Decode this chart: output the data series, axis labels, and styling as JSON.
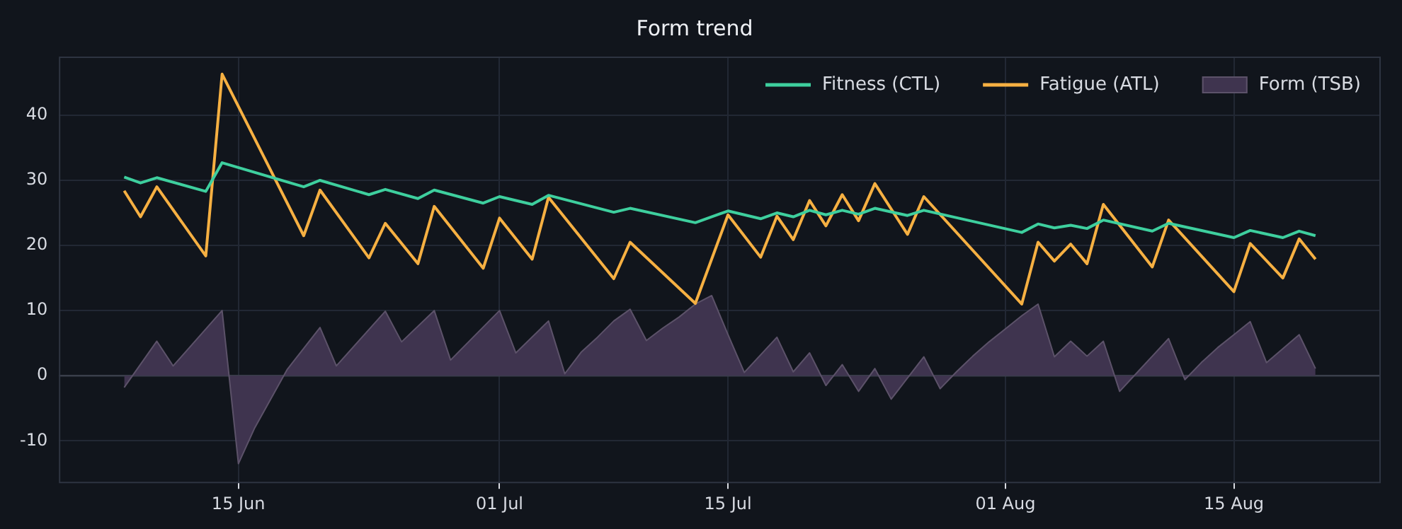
{
  "chart_data": {
    "type": "line",
    "title": "Form trend",
    "xlim": [
      "--06-04",
      "--08-24"
    ],
    "xticks": [
      {
        "value": "--06-15",
        "label": "15 Jun"
      },
      {
        "value": "--07-01",
        "label": "01 Jul"
      },
      {
        "value": "--07-15",
        "label": "15 Jul"
      },
      {
        "value": "--08-01",
        "label": "01 Aug"
      },
      {
        "value": "--08-15",
        "label": "15 Aug"
      }
    ],
    "ylim": [
      -16.5,
      49
    ],
    "yticks": [
      -10,
      0,
      10,
      20,
      30,
      40
    ],
    "grid": true,
    "legend": "top right",
    "ref_lines": [
      {
        "axis": "y",
        "value": 0,
        "color": "#3a3f4b"
      }
    ],
    "series": [
      {
        "name": "Fitness (CTL)",
        "color": "#3ecf9e",
        "x": [
          "--06-08",
          "--06-09",
          "--06-10",
          "--06-13",
          "--06-14",
          "--06-19",
          "--06-20",
          "--06-23",
          "--06-24",
          "--06-26",
          "--06-27",
          "--06-30",
          "--07-01",
          "--07-03",
          "--07-04",
          "--07-08",
          "--07-09",
          "--07-13",
          "--07-15",
          "--07-17",
          "--07-18",
          "--07-19",
          "--07-20",
          "--07-21",
          "--07-22",
          "--07-23",
          "--07-24",
          "--07-26",
          "--07-27",
          "--08-02",
          "--08-03",
          "--08-04",
          "--08-05",
          "--08-06",
          "--08-07",
          "--08-10",
          "--08-11",
          "--08-15",
          "--08-16",
          "--08-18",
          "--08-19",
          "--08-20"
        ],
        "values": [
          30.5,
          29.6,
          30.4,
          28.3,
          32.7,
          29.0,
          30.0,
          27.8,
          28.6,
          27.2,
          28.5,
          26.5,
          27.5,
          26.3,
          27.7,
          25.1,
          25.7,
          23.5,
          25.3,
          24.1,
          25.0,
          24.4,
          25.4,
          24.7,
          25.4,
          24.8,
          25.7,
          24.6,
          25.4,
          22.0,
          23.3,
          22.7,
          23.1,
          22.6,
          23.9,
          22.2,
          23.4,
          21.2,
          22.3,
          21.2,
          22.2,
          21.5
        ]
      },
      {
        "name": "Fatigue (ATL)",
        "color": "#f6b042",
        "x": [
          "--06-08",
          "--06-09",
          "--06-10",
          "--06-13",
          "--06-14",
          "--06-19",
          "--06-20",
          "--06-23",
          "--06-24",
          "--06-26",
          "--06-27",
          "--06-30",
          "--07-01",
          "--07-03",
          "--07-04",
          "--07-08",
          "--07-09",
          "--07-13",
          "--07-15",
          "--07-17",
          "--07-18",
          "--07-19",
          "--07-20",
          "--07-21",
          "--07-22",
          "--07-23",
          "--07-24",
          "--07-26",
          "--07-27",
          "--08-02",
          "--08-03",
          "--08-04",
          "--08-05",
          "--08-06",
          "--08-07",
          "--08-10",
          "--08-11",
          "--08-15",
          "--08-16",
          "--08-18",
          "--08-19",
          "--08-20"
        ],
        "values": [
          28.4,
          24.4,
          29.0,
          18.4,
          46.3,
          21.5,
          28.5,
          18.1,
          23.4,
          17.2,
          26.0,
          16.5,
          24.2,
          17.9,
          27.4,
          14.9,
          20.5,
          11.1,
          24.7,
          18.2,
          24.5,
          20.9,
          26.9,
          23.0,
          27.8,
          23.8,
          29.5,
          21.7,
          27.5,
          11.0,
          20.5,
          17.6,
          20.2,
          17.2,
          26.3,
          16.7,
          23.9,
          12.9,
          20.3,
          15.0,
          21.0,
          17.9
        ]
      },
      {
        "name": "Form (TSB)",
        "type": "area",
        "color": "#3f344f",
        "x": [
          "--06-08",
          "--06-10",
          "--06-11",
          "--06-14",
          "--06-15",
          "--06-16",
          "--06-17",
          "--06-18",
          "--06-19",
          "--06-20",
          "--06-21",
          "--06-24",
          "--06-25",
          "--06-27",
          "--06-28",
          "--07-01",
          "--07-02",
          "--07-04",
          "--07-05",
          "--07-06",
          "--07-07",
          "--07-08",
          "--07-09",
          "--07-10",
          "--07-11",
          "--07-12",
          "--07-13",
          "--07-14",
          "--07-15",
          "--07-16",
          "--07-18",
          "--07-19",
          "--07-20",
          "--07-21",
          "--07-22",
          "--07-23",
          "--07-24",
          "--07-25",
          "--07-27",
          "--07-28",
          "--07-29",
          "--07-30",
          "--07-31",
          "--08-01",
          "--08-02",
          "--08-03",
          "--08-04",
          "--08-05",
          "--08-06",
          "--08-07",
          "--08-08",
          "--08-09",
          "--08-10",
          "--08-11",
          "--08-12",
          "--08-13",
          "--08-14",
          "--08-15",
          "--08-16",
          "--08-17",
          "--08-19",
          "--08-20"
        ],
        "values": [
          -1.8,
          5.3,
          1.5,
          10.0,
          -13.5,
          -8.0,
          -3.5,
          1.0,
          4.2,
          7.4,
          1.5,
          9.9,
          5.2,
          10.0,
          2.4,
          10.0,
          3.5,
          8.4,
          0.3,
          3.6,
          5.9,
          8.4,
          10.2,
          5.4,
          7.3,
          9.0,
          11.0,
          12.3,
          6.3,
          0.5,
          5.9,
          0.6,
          3.5,
          -1.5,
          1.7,
          -2.4,
          1.1,
          -3.6,
          2.9,
          -2.0,
          0.6,
          3.0,
          5.2,
          7.2,
          9.2,
          11.0,
          2.9,
          5.3,
          3.0,
          5.3,
          -2.4,
          0.3,
          3.0,
          5.7,
          -0.6,
          2.0,
          4.3,
          6.3,
          8.3,
          2.0,
          6.3,
          1.1
        ]
      }
    ]
  }
}
